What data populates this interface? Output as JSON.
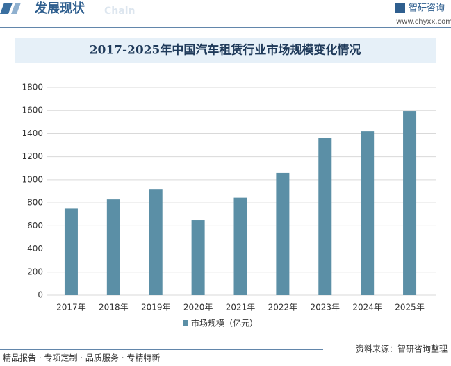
{
  "header": {
    "section": "发展现状",
    "section_en": "Chain",
    "brand": "智研咨询",
    "site": "www.chyxx.com"
  },
  "footer": {
    "tagline": "精品报告 · 专项定制 · 品质服务 · 专精特新",
    "source": "资料来源：智研咨询整理"
  },
  "chart_data": {
    "type": "bar",
    "title": "2017-2025年中国汽车租赁行业市场规模变化情况",
    "categories": [
      "2017年",
      "2018年",
      "2019年",
      "2020年",
      "2021年",
      "2022年",
      "2023年",
      "2024年",
      "2025年"
    ],
    "series": [
      {
        "name": "市场规模（亿元）",
        "color": "#5b8fa6",
        "values": [
          750,
          830,
          920,
          650,
          845,
          1060,
          1365,
          1420,
          1595
        ]
      }
    ],
    "ylim": [
      0,
      1800
    ],
    "yticks": [
      0,
      200,
      400,
      600,
      800,
      1000,
      1200,
      1400,
      1600,
      1800
    ],
    "grid": true,
    "legend": "bottom"
  }
}
